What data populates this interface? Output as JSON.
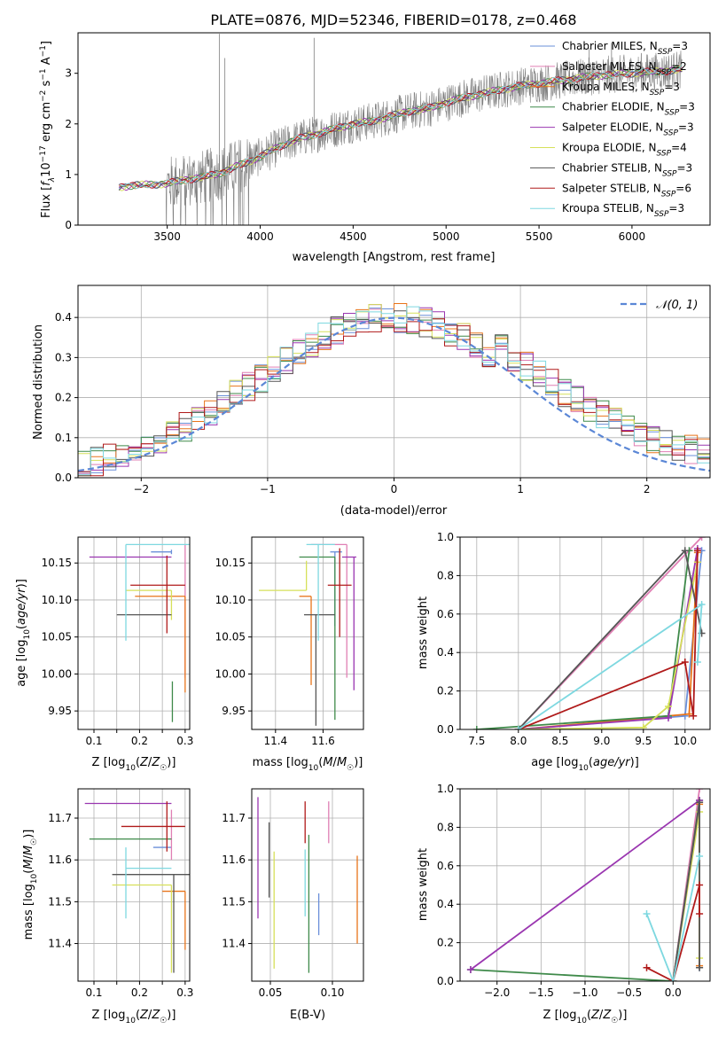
{
  "figure_title": "PLATE=0876, MJD=52346, FIBERID=0178, z=0.468",
  "colors": {
    "Chabrier MILES": "#6a8fd9",
    "Salpeter MILES": "#e07fb4",
    "Kroupa MILES": "#e8741a",
    "Chabrier ELODIE": "#3f8a4a",
    "Salpeter ELODIE": "#9a36b0",
    "Kroupa ELODIE": "#d6e05a",
    "Chabrier STELIB": "#555555",
    "Salpeter STELIB": "#b01a1a",
    "Kroupa STELIB": "#7ed8e0",
    "data": "#808080",
    "normal": "#5b87d6"
  },
  "chart_data": [
    {
      "id": "spectrum",
      "type": "line",
      "title": "PLATE=0876, MJD=52346, FIBERID=0178, z=0.468",
      "xlabel": "wavelength [Angstrom, rest frame]",
      "ylabel": "Flux [f_λ 10^-17 erg cm^-2 s^-1 A^-1]",
      "xlim": [
        3020,
        6420
      ],
      "ylim": [
        0,
        3.8
      ],
      "xticks": [
        3500,
        4000,
        4500,
        5000,
        5500,
        6000
      ],
      "yticks": [
        0,
        1,
        2,
        3
      ],
      "legend_position": "top-right",
      "legend": [
        {
          "name": "Chabrier MILES",
          "n": "3"
        },
        {
          "name": "Salpeter MILES",
          "n": "2"
        },
        {
          "name": "Kroupa MILES",
          "n": "3"
        },
        {
          "name": "Chabrier ELODIE",
          "n": "3"
        },
        {
          "name": "Salpeter ELODIE",
          "n": "3"
        },
        {
          "name": "Kroupa ELODIE",
          "n": "4"
        },
        {
          "name": "Chabrier STELIB",
          "n": "3"
        },
        {
          "name": "Salpeter STELIB",
          "n": "6"
        },
        {
          "name": "Kroupa STELIB",
          "n": "3"
        }
      ],
      "legend_label_prefix": "N",
      "legend_label_sub": "SSP",
      "continuum": {
        "x": [
          3240,
          3300,
          3400,
          3500,
          3600,
          3700,
          3800,
          3900,
          4000,
          4100,
          4200,
          4300,
          4400,
          4500,
          4600,
          4700,
          4800,
          4900,
          5000,
          5100,
          5200,
          5300,
          5400,
          5500,
          5600,
          5700,
          5800,
          5900,
          6000,
          6100,
          6200,
          6270
        ],
        "y": [
          0.75,
          0.78,
          0.8,
          0.82,
          0.9,
          0.95,
          1.05,
          1.2,
          1.35,
          1.55,
          1.7,
          1.8,
          1.9,
          2.0,
          2.05,
          2.15,
          2.25,
          2.3,
          2.42,
          2.52,
          2.6,
          2.68,
          2.75,
          2.8,
          2.85,
          2.9,
          2.95,
          2.98,
          3.0,
          3.03,
          3.05,
          3.08
        ]
      },
      "spikes": [
        {
          "x": 3780,
          "y": 3.78
        },
        {
          "x": 3810,
          "y": 3.3
        },
        {
          "x": 4290,
          "y": 3.7
        },
        {
          "x": 5770,
          "y": 3.5
        },
        {
          "x": 5890,
          "y": 3.6
        },
        {
          "x": 6050,
          "y": 3.4
        }
      ]
    },
    {
      "id": "residuals",
      "type": "histogram",
      "xlabel": "(data-model)/error",
      "ylabel": "Normed distribution",
      "xlim": [
        -2.5,
        2.5
      ],
      "ylim": [
        0,
        0.48
      ],
      "xticks": [
        -2,
        -1,
        0,
        1,
        2
      ],
      "yticks": [
        0.0,
        0.1,
        0.2,
        0.3,
        0.4
      ],
      "grid": true,
      "bin_width": 0.1,
      "legend_position": "top-right",
      "reference_curve": "N(0,1)",
      "reference_label": "𝒩(0, 1)"
    },
    {
      "id": "age-vs-Z",
      "type": "errorbar",
      "xlabel": "Z [log10(Z/Z☉)]",
      "ylabel": "age [log10(age/yr)]",
      "xlim": [
        0.065,
        0.31
      ],
      "ylim": [
        9.925,
        10.185
      ],
      "xticks": [
        0.1,
        0.15,
        0.2,
        0.25,
        0.3
      ],
      "xticklabels": [
        "0.1",
        "",
        "0.2",
        "",
        "0.3"
      ],
      "yticks": [
        9.95,
        10.0,
        10.05,
        10.1,
        10.15
      ],
      "grid": true,
      "points": [
        {
          "series": "Chabrier MILES",
          "x": 0.27,
          "xerr": [
            0.045,
            0.0
          ],
          "y": 10.165,
          "yerr": [
            0.003,
            0.003
          ]
        },
        {
          "series": "Salpeter MILES",
          "x": 0.3,
          "xerr": [
            0.0,
            0.0
          ],
          "y": 10.175,
          "yerr": [
            0.18,
            0.0
          ]
        },
        {
          "series": "Kroupa MILES",
          "x": 0.3,
          "xerr": [
            0.11,
            0.0
          ],
          "y": 10.105,
          "yerr": [
            0.13,
            0.0
          ]
        },
        {
          "series": "Chabrier ELODIE",
          "x": 0.272,
          "xerr": [
            0.0,
            0.0
          ],
          "y": 9.99,
          "yerr": [
            0.055,
            0.0
          ]
        },
        {
          "series": "Salpeter ELODIE",
          "x": 0.27,
          "xerr": [
            0.18,
            0.0
          ],
          "y": 10.158,
          "yerr": [
            0.0,
            0.0
          ]
        },
        {
          "series": "Kroupa ELODIE",
          "x": 0.27,
          "xerr": [
            0.1,
            0.0
          ],
          "y": 10.113,
          "yerr": [
            0.04,
            0.0
          ]
        },
        {
          "series": "Chabrier STELIB",
          "x": 0.27,
          "xerr": [
            0.12,
            0.0
          ],
          "y": 10.08,
          "yerr": [
            0.0,
            0.0
          ]
        },
        {
          "series": "Salpeter STELIB",
          "x": 0.26,
          "xerr": [
            0.08,
            0.04
          ],
          "y": 10.12,
          "yerr": [
            0.065,
            0.04
          ]
        },
        {
          "series": "Kroupa STELIB",
          "x": 0.17,
          "xerr": [
            0.0,
            0.14
          ],
          "y": 10.175,
          "yerr": [
            0.13,
            0.0
          ]
        }
      ]
    },
    {
      "id": "age-vs-mass",
      "type": "errorbar",
      "xlabel": "mass [log10(M/M☉)]",
      "ylabel": "",
      "xlim": [
        11.3,
        11.77
      ],
      "ylim": [
        9.925,
        10.185
      ],
      "xticks": [
        11.4,
        11.6
      ],
      "yticks": [
        9.95,
        10.0,
        10.05,
        10.1,
        10.15
      ],
      "grid": true,
      "points": [
        {
          "series": "Chabrier MILES",
          "x": 11.65,
          "xerr": [
            0.02,
            0.03
          ],
          "y": 10.165,
          "yerr": [
            0.1,
            0.0
          ]
        },
        {
          "series": "Salpeter MILES",
          "x": 11.7,
          "xerr": [
            0.15,
            0.0
          ],
          "y": 10.175,
          "yerr": [
            0.18,
            0.0
          ]
        },
        {
          "series": "Kroupa MILES",
          "x": 11.55,
          "xerr": [
            0.05,
            0.0
          ],
          "y": 10.105,
          "yerr": [
            0.12,
            0.0
          ]
        },
        {
          "series": "Chabrier ELODIE",
          "x": 11.65,
          "xerr": [
            0.15,
            0.0
          ],
          "y": 10.158,
          "yerr": [
            0.22,
            0.0
          ]
        },
        {
          "series": "Salpeter ELODIE",
          "x": 11.73,
          "xerr": [
            0.05,
            0.01
          ],
          "y": 10.158,
          "yerr": [
            0.18,
            0.0
          ]
        },
        {
          "series": "Kroupa ELODIE",
          "x": 11.53,
          "xerr": [
            0.2,
            0.0
          ],
          "y": 10.113,
          "yerr": [
            0.0,
            0.04
          ]
        },
        {
          "series": "Chabrier STELIB",
          "x": 11.57,
          "xerr": [
            0.05,
            0.08
          ],
          "y": 10.08,
          "yerr": [
            0.15,
            0.0
          ]
        },
        {
          "series": "Salpeter STELIB",
          "x": 11.67,
          "xerr": [
            0.05,
            0.05
          ],
          "y": 10.12,
          "yerr": [
            0.07,
            0.05
          ]
        },
        {
          "series": "Kroupa STELIB",
          "x": 11.58,
          "xerr": [
            0.05,
            0.07
          ],
          "y": 10.175,
          "yerr": [
            0.13,
            0.0
          ]
        }
      ]
    },
    {
      "id": "weight-vs-age",
      "type": "line",
      "xlabel": "age [log10(age/yr)]",
      "ylabel": "mass weight",
      "xlim": [
        7.3,
        10.3
      ],
      "ylim": [
        0,
        1
      ],
      "xticks": [
        7.5,
        8.0,
        8.5,
        9.0,
        9.5,
        10.0
      ],
      "yticks": [
        0.0,
        0.2,
        0.4,
        0.6,
        0.8,
        1.0
      ],
      "grid": true,
      "series": [
        {
          "name": "Chabrier MILES",
          "x": [
            8.0,
            10.0,
            10.2
          ],
          "y": [
            0.0,
            0.07,
            0.93
          ]
        },
        {
          "name": "Salpeter MILES",
          "x": [
            8.0,
            10.2
          ],
          "y": [
            0.0,
            1.0
          ]
        },
        {
          "name": "Kroupa MILES",
          "x": [
            8.0,
            10.05,
            10.15
          ],
          "y": [
            0.0,
            0.08,
            0.92
          ]
        },
        {
          "name": "Chabrier ELODIE",
          "x": [
            7.5,
            9.8,
            10.05
          ],
          "y": [
            0.0,
            0.07,
            0.93
          ]
        },
        {
          "name": "Salpeter ELODIE",
          "x": [
            8.0,
            9.8,
            10.15
          ],
          "y": [
            0.0,
            0.06,
            0.94
          ]
        },
        {
          "name": "Kroupa ELODIE",
          "x": [
            8.0,
            9.5,
            9.8,
            10.15
          ],
          "y": [
            0.0,
            0.01,
            0.12,
            0.87
          ]
        },
        {
          "name": "Chabrier STELIB",
          "x": [
            8.0,
            10.0,
            10.2
          ],
          "y": [
            0.0,
            0.93,
            0.5
          ]
        },
        {
          "name": "Salpeter STELIB",
          "x": [
            8.0,
            10.0,
            10.1,
            10.15
          ],
          "y": [
            0.0,
            0.35,
            0.07,
            0.93
          ]
        },
        {
          "name": "Kroupa STELIB",
          "x": [
            8.0,
            10.2,
            10.15
          ],
          "y": [
            0.0,
            0.65,
            0.35
          ]
        }
      ]
    },
    {
      "id": "mass-vs-Z",
      "type": "errorbar",
      "xlabel": "Z [log10(Z/Z☉)]",
      "ylabel": "mass [log10(M/M☉)]",
      "xlim": [
        0.065,
        0.31
      ],
      "ylim": [
        11.31,
        11.77
      ],
      "xticks": [
        0.1,
        0.15,
        0.2,
        0.25,
        0.3
      ],
      "xticklabels": [
        "0.1",
        "",
        "0.2",
        "",
        "0.3"
      ],
      "yticks": [
        11.4,
        11.5,
        11.6,
        11.7
      ],
      "grid": true,
      "points": [
        {
          "series": "Chabrier MILES",
          "x": 0.27,
          "xerr": [
            0.04,
            0.0
          ],
          "y": 11.63,
          "yerr": [
            0.0,
            0.0
          ]
        },
        {
          "series": "Salpeter MILES",
          "x": 0.27,
          "xerr": [
            0.0,
            0.0
          ],
          "y": 11.66,
          "yerr": [
            0.06,
            0.06
          ]
        },
        {
          "series": "Kroupa MILES",
          "x": 0.3,
          "xerr": [
            0.05,
            0.0
          ],
          "y": 11.525,
          "yerr": [
            0.14,
            0.0
          ]
        },
        {
          "series": "Chabrier ELODIE",
          "x": 0.27,
          "xerr": [
            0.18,
            0.0
          ],
          "y": 11.65,
          "yerr": [
            0.0,
            0.0
          ]
        },
        {
          "series": "Salpeter ELODIE",
          "x": 0.27,
          "xerr": [
            0.19,
            0.0
          ],
          "y": 11.735,
          "yerr": [
            0.0,
            0.0
          ]
        },
        {
          "series": "Kroupa ELODIE",
          "x": 0.27,
          "xerr": [
            0.13,
            0.0
          ],
          "y": 11.54,
          "yerr": [
            0.21,
            0.0
          ]
        },
        {
          "series": "Chabrier STELIB",
          "x": 0.275,
          "xerr": [
            0.135,
            0.035
          ],
          "y": 11.565,
          "yerr": [
            0.235,
            0.0
          ]
        },
        {
          "series": "Salpeter STELIB",
          "x": 0.26,
          "xerr": [
            0.1,
            0.04
          ],
          "y": 11.68,
          "yerr": [
            0.06,
            0.06
          ]
        },
        {
          "series": "Kroupa STELIB",
          "x": 0.17,
          "xerr": [
            0.0,
            0.1
          ],
          "y": 11.58,
          "yerr": [
            0.12,
            0.05
          ]
        }
      ]
    },
    {
      "id": "mass-vs-EBV",
      "type": "errorbar",
      "xlabel": "E(B-V)",
      "ylabel": "",
      "xlim": [
        0.035,
        0.125
      ],
      "ylim": [
        11.31,
        11.77
      ],
      "xticks": [
        0.05,
        0.1
      ],
      "xticklabels": [
        "0.05",
        "0.10"
      ],
      "yticks": [
        11.4,
        11.5,
        11.6,
        11.7
      ],
      "grid": true,
      "points": [
        {
          "series": "Chabrier MILES",
          "x": 0.089,
          "y": 11.52,
          "yerr": [
            0.1,
            0.0
          ]
        },
        {
          "series": "Salpeter MILES",
          "x": 0.097,
          "y": 11.64,
          "yerr": [
            0.0,
            0.1
          ]
        },
        {
          "series": "Kroupa MILES",
          "x": 0.12,
          "y": 11.5,
          "yerr": [
            0.1,
            0.11
          ]
        },
        {
          "series": "Chabrier ELODIE",
          "x": 0.081,
          "y": 11.5,
          "yerr": [
            0.17,
            0.16
          ]
        },
        {
          "series": "Salpeter ELODIE",
          "x": 0.04,
          "y": 11.6,
          "yerr": [
            0.14,
            0.15
          ]
        },
        {
          "series": "Kroupa ELODIE",
          "x": 0.053,
          "y": 11.48,
          "yerr": [
            0.14,
            0.14
          ]
        },
        {
          "series": "Chabrier STELIB",
          "x": 0.049,
          "y": 11.6,
          "yerr": [
            0.09,
            0.09
          ]
        },
        {
          "series": "Salpeter STELIB",
          "x": 0.078,
          "y": 11.64,
          "yerr": [
            0.0,
            0.1
          ]
        },
        {
          "series": "Kroupa STELIB",
          "x": 0.078,
          "y": 11.545,
          "yerr": [
            0.08,
            0.08
          ]
        }
      ]
    },
    {
      "id": "weight-vs-Z",
      "type": "line",
      "xlabel": "Z [log10(Z/Z☉)]",
      "ylabel": "mass weight",
      "xlim": [
        -2.42,
        0.42
      ],
      "ylim": [
        0,
        1
      ],
      "xticks": [
        -2.0,
        -1.5,
        -1.0,
        -0.5,
        0.0
      ],
      "yticks": [
        0.0,
        0.2,
        0.4,
        0.6,
        0.8,
        1.0
      ],
      "grid": true,
      "series": [
        {
          "name": "Chabrier MILES",
          "x": [
            0.0,
            0.3,
            0.3
          ],
          "y": [
            0.0,
            0.93,
            0.07
          ]
        },
        {
          "name": "Salpeter MILES",
          "x": [
            0.0,
            0.3
          ],
          "y": [
            0.0,
            1.0
          ]
        },
        {
          "name": "Kroupa MILES",
          "x": [
            0.0,
            0.3,
            0.3
          ],
          "y": [
            0.0,
            0.92,
            0.08
          ]
        },
        {
          "name": "Chabrier ELODIE",
          "x": [
            -2.3,
            0.0,
            0.3
          ],
          "y": [
            0.06,
            0.0,
            0.94
          ]
        },
        {
          "name": "Salpeter ELODIE",
          "x": [
            -2.3,
            0.3
          ],
          "y": [
            0.06,
            0.94
          ]
        },
        {
          "name": "Kroupa ELODIE",
          "x": [
            0.0,
            0.3,
            0.3
          ],
          "y": [
            0.0,
            0.88,
            0.12
          ]
        },
        {
          "name": "Chabrier STELIB",
          "x": [
            0.0,
            0.3,
            0.3
          ],
          "y": [
            0.0,
            0.93,
            0.07
          ]
        },
        {
          "name": "Salpeter STELIB",
          "x": [
            -0.3,
            0.0,
            0.3,
            0.3
          ],
          "y": [
            0.07,
            0.0,
            0.5,
            0.35
          ]
        },
        {
          "name": "Kroupa STELIB",
          "x": [
            -0.3,
            0.0,
            0.3
          ],
          "y": [
            0.35,
            0.0,
            0.65
          ]
        }
      ]
    }
  ]
}
